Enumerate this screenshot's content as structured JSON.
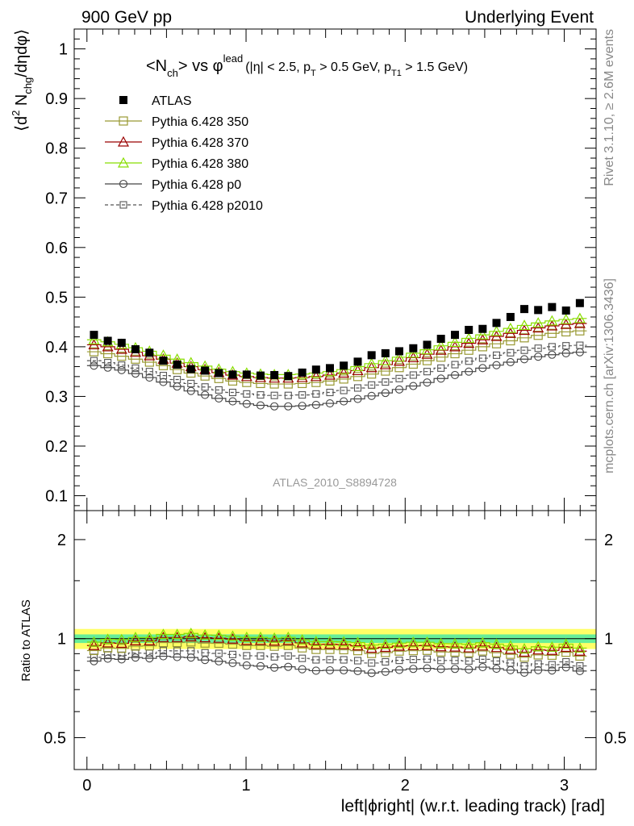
{
  "header": {
    "left": "900 GeV pp",
    "right": "Underlying Event"
  },
  "title": {
    "lead": "<N",
    "lead_sub": "ch",
    "mid": "> vs φ",
    "mid_sup": "lead",
    "cuts_a": "(|η| < 2.5, p",
    "cuts_sub_a": "T",
    "cuts_b": " > 0.5 GeV, p",
    "cuts_sub_b": "T1",
    "cuts_c": " > 1.5 GeV)"
  },
  "side_labels": {
    "rivet": "Rivet 3.1.10, ≥ 2.6M events",
    "mcplots": "mcplots.cern.ch [arXiv:1306.3436]"
  },
  "analysis_tag": "ATLAS_2010_S8894728",
  "ylabel_main": {
    "a": "⟨d",
    "sup": "2",
    "b": " N",
    "sub": "chg",
    "c": "/dηdφ⟩"
  },
  "ylabel_ratio": "Ratio to ATLAS",
  "xlabel": "left|ϕright| (w.r.t. leading track) [rad]",
  "colors": {
    "atlas": "#000000",
    "p350": "#999933",
    "p370": "#990000",
    "p380": "#88dd00",
    "p0": "#444444",
    "p2010": "#555555",
    "band_outer": "#ffff66",
    "band_inner": "#66ee99"
  },
  "chart_data": [
    {
      "type": "scatter",
      "panel": "main",
      "xlim": [
        -0.08,
        3.2
      ],
      "ylim": [
        0.07,
        1.04
      ],
      "x_ticks": [
        "0",
        "1",
        "2",
        "3"
      ],
      "y_ticks": [
        "0.1",
        "0.2",
        "0.3",
        "0.4",
        "0.5",
        "0.6",
        "0.7",
        "0.8",
        "0.9",
        "1"
      ],
      "n_bins": 36,
      "x": [
        0.044,
        0.131,
        0.218,
        0.305,
        0.393,
        0.48,
        0.567,
        0.654,
        0.742,
        0.829,
        0.916,
        1.004,
        1.091,
        1.178,
        1.265,
        1.353,
        1.44,
        1.527,
        1.614,
        1.702,
        1.789,
        1.876,
        1.963,
        2.051,
        2.138,
        2.225,
        2.313,
        2.4,
        2.487,
        2.574,
        2.662,
        2.749,
        2.836,
        2.923,
        3.011,
        3.098
      ],
      "legend_position": "top-left",
      "series": [
        {
          "name": "ATLAS",
          "marker": "filled-square",
          "values": [
            0.424,
            0.412,
            0.408,
            0.395,
            0.388,
            0.372,
            0.364,
            0.355,
            0.352,
            0.347,
            0.344,
            0.344,
            0.342,
            0.343,
            0.341,
            0.348,
            0.354,
            0.357,
            0.362,
            0.37,
            0.383,
            0.387,
            0.391,
            0.397,
            0.404,
            0.416,
            0.424,
            0.434,
            0.436,
            0.448,
            0.46,
            0.476,
            0.474,
            0.48,
            0.473,
            0.488
          ]
        },
        {
          "name": "Pythia 6.428 350",
          "marker": "open-square",
          "values": [
            0.39,
            0.386,
            0.381,
            0.375,
            0.369,
            0.362,
            0.354,
            0.347,
            0.341,
            0.336,
            0.331,
            0.328,
            0.326,
            0.325,
            0.325,
            0.326,
            0.328,
            0.331,
            0.335,
            0.34,
            0.345,
            0.351,
            0.358,
            0.365,
            0.372,
            0.379,
            0.386,
            0.393,
            0.4,
            0.406,
            0.412,
            0.418,
            0.423,
            0.427,
            0.43,
            0.432
          ]
        },
        {
          "name": "Pythia 6.428 370",
          "marker": "open-triangle",
          "values": [
            0.404,
            0.4,
            0.395,
            0.389,
            0.382,
            0.375,
            0.367,
            0.36,
            0.354,
            0.348,
            0.343,
            0.34,
            0.338,
            0.337,
            0.337,
            0.338,
            0.34,
            0.343,
            0.347,
            0.352,
            0.358,
            0.364,
            0.371,
            0.378,
            0.385,
            0.393,
            0.4,
            0.407,
            0.414,
            0.421,
            0.427,
            0.433,
            0.438,
            0.442,
            0.445,
            0.447
          ]
        },
        {
          "name": "Pythia 6.428 380",
          "marker": "open-triangle",
          "values": [
            0.414,
            0.41,
            0.405,
            0.398,
            0.391,
            0.383,
            0.375,
            0.368,
            0.361,
            0.355,
            0.35,
            0.347,
            0.345,
            0.344,
            0.344,
            0.345,
            0.347,
            0.35,
            0.354,
            0.36,
            0.366,
            0.372,
            0.379,
            0.387,
            0.394,
            0.402,
            0.409,
            0.417,
            0.424,
            0.431,
            0.437,
            0.443,
            0.448,
            0.452,
            0.455,
            0.457
          ]
        },
        {
          "name": "Pythia 6.428 p0",
          "marker": "open-circle",
          "values": [
            0.362,
            0.358,
            0.353,
            0.346,
            0.338,
            0.329,
            0.32,
            0.311,
            0.303,
            0.296,
            0.29,
            0.285,
            0.282,
            0.28,
            0.28,
            0.281,
            0.283,
            0.286,
            0.29,
            0.295,
            0.301,
            0.307,
            0.314,
            0.321,
            0.328,
            0.336,
            0.343,
            0.35,
            0.357,
            0.363,
            0.369,
            0.375,
            0.38,
            0.384,
            0.387,
            0.389
          ]
        },
        {
          "name": "Pythia 6.428 p2010",
          "marker": "open-square-dashed",
          "values": [
            0.372,
            0.368,
            0.363,
            0.357,
            0.35,
            0.342,
            0.334,
            0.326,
            0.319,
            0.313,
            0.308,
            0.305,
            0.303,
            0.302,
            0.302,
            0.303,
            0.305,
            0.308,
            0.312,
            0.317,
            0.323,
            0.329,
            0.336,
            0.343,
            0.35,
            0.357,
            0.364,
            0.371,
            0.377,
            0.383,
            0.388,
            0.393,
            0.397,
            0.4,
            0.402,
            0.403
          ]
        }
      ]
    },
    {
      "type": "scatter",
      "panel": "ratio",
      "xlim": [
        -0.08,
        3.2
      ],
      "ylim": [
        0.4,
        2.45
      ],
      "y_scale": "log",
      "y_ticks": [
        "0.5",
        "1",
        "2"
      ],
      "band_outer": [
        0.93,
        1.07
      ],
      "band_inner": [
        0.97,
        1.03
      ],
      "series": [
        {
          "name": "Pythia 6.428 350",
          "values": [
            0.92,
            0.937,
            0.934,
            0.949,
            0.951,
            0.973,
            0.973,
            0.977,
            0.969,
            0.968,
            0.962,
            0.953,
            0.953,
            0.948,
            0.953,
            0.937,
            0.927,
            0.927,
            0.925,
            0.919,
            0.901,
            0.907,
            0.916,
            0.919,
            0.921,
            0.911,
            0.91,
            0.906,
            0.917,
            0.906,
            0.896,
            0.878,
            0.892,
            0.89,
            0.909,
            0.885
          ]
        },
        {
          "name": "Pythia 6.428 370",
          "values": [
            0.953,
            0.971,
            0.968,
            0.985,
            0.985,
            1.008,
            1.008,
            1.014,
            1.006,
            1.003,
            0.997,
            0.988,
            0.988,
            0.983,
            0.988,
            0.971,
            0.96,
            0.961,
            0.959,
            0.951,
            0.935,
            0.941,
            0.949,
            0.952,
            0.953,
            0.945,
            0.943,
            0.938,
            0.95,
            0.94,
            0.928,
            0.91,
            0.924,
            0.921,
            0.941,
            0.916
          ]
        },
        {
          "name": "Pythia 6.428 380",
          "values": [
            0.976,
            0.995,
            0.993,
            1.008,
            1.008,
            1.03,
            1.03,
            1.037,
            1.026,
            1.023,
            1.017,
            1.009,
            1.009,
            1.003,
            1.009,
            0.991,
            0.98,
            0.98,
            0.978,
            0.973,
            0.956,
            0.961,
            0.969,
            0.975,
            0.975,
            0.966,
            0.965,
            0.961,
            0.972,
            0.962,
            0.95,
            0.931,
            0.945,
            0.942,
            0.962,
            0.936
          ]
        },
        {
          "name": "Pythia 6.428 p0",
          "values": [
            0.854,
            0.869,
            0.865,
            0.876,
            0.871,
            0.884,
            0.879,
            0.876,
            0.861,
            0.853,
            0.843,
            0.829,
            0.825,
            0.816,
            0.821,
            0.807,
            0.799,
            0.801,
            0.801,
            0.797,
            0.786,
            0.793,
            0.803,
            0.809,
            0.812,
            0.808,
            0.809,
            0.806,
            0.819,
            0.81,
            0.802,
            0.788,
            0.802,
            0.8,
            0.818,
            0.797
          ]
        },
        {
          "name": "Pythia 6.428 p2010",
          "values": [
            0.877,
            0.893,
            0.89,
            0.904,
            0.902,
            0.919,
            0.918,
            0.918,
            0.906,
            0.902,
            0.895,
            0.887,
            0.886,
            0.88,
            0.886,
            0.871,
            0.862,
            0.863,
            0.862,
            0.857,
            0.843,
            0.85,
            0.859,
            0.864,
            0.866,
            0.858,
            0.858,
            0.855,
            0.865,
            0.855,
            0.843,
            0.826,
            0.838,
            0.833,
            0.85,
            0.826
          ]
        }
      ]
    }
  ]
}
